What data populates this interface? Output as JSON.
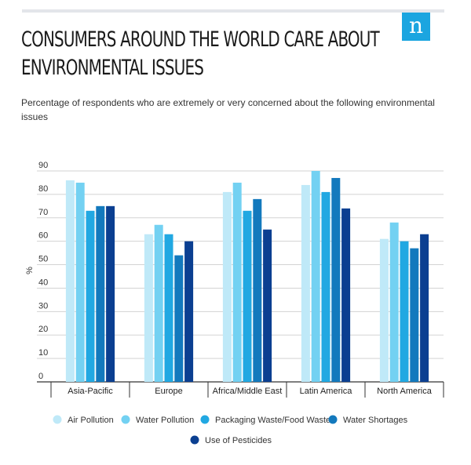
{
  "logo": {
    "text": "n",
    "color": "#1ba5e0"
  },
  "title": "CONSUMERS AROUND THE WORLD CARE ABOUT ENVIRONMENTAL ISSUES",
  "subtitle": "Percentage of respondents who are extremely or very concerned about the following environmental issues",
  "chart_data": {
    "type": "bar",
    "categories": [
      "Asia-Pacific",
      "Europe",
      "Africa/Middle East",
      "Latin America",
      "North America"
    ],
    "series": [
      {
        "name": "Air Pollution",
        "color": "#bfe9f8",
        "values": [
          86,
          63,
          81,
          84,
          61
        ]
      },
      {
        "name": "Water Pollution",
        "color": "#73d1f2",
        "values": [
          85,
          67,
          85,
          90,
          68
        ]
      },
      {
        "name": "Packaging Waste/Food Waste",
        "color": "#21a8e2",
        "values": [
          73,
          63,
          73,
          81,
          60
        ]
      },
      {
        "name": "Water Shortages",
        "color": "#1379bd",
        "values": [
          75,
          54,
          78,
          87,
          57
        ]
      },
      {
        "name": "Use of Pesticides",
        "color": "#0b3f91",
        "values": [
          75,
          60,
          65,
          74,
          63
        ]
      }
    ],
    "ylabel": "%",
    "ylim": [
      0,
      90
    ],
    "yticks": [
      0,
      10,
      20,
      30,
      40,
      50,
      60,
      70,
      80,
      90
    ],
    "grid": true,
    "legend": "bottom"
  }
}
